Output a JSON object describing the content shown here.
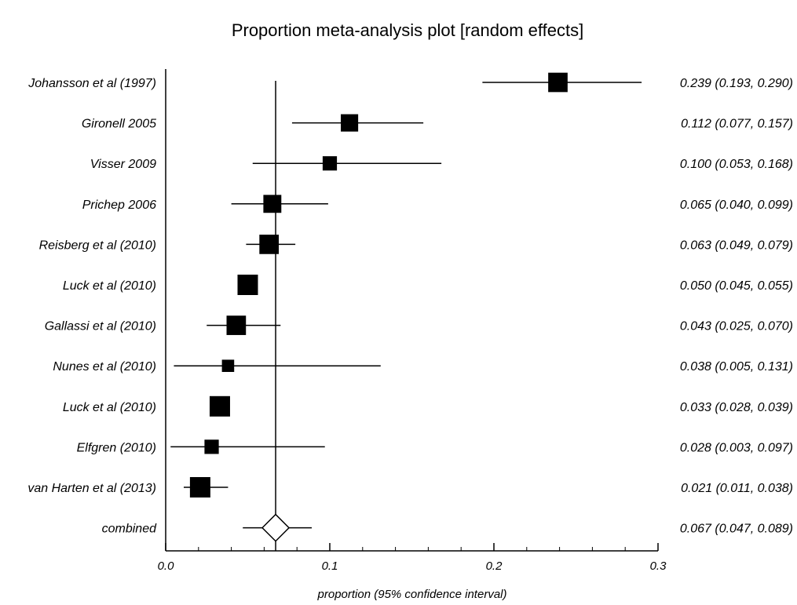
{
  "chart_data": {
    "type": "forest",
    "title": "Proportion meta-analysis plot [random effects]",
    "xlabel": "proportion (95% confidence interval)",
    "xlim": [
      0.0,
      0.3
    ],
    "xticks": [
      "0.0",
      "0.1",
      "0.2",
      "0.3"
    ],
    "xtick_values": [
      0.0,
      0.1,
      0.2,
      0.3
    ],
    "minor_step": 0.02,
    "pooled_line": 0.067,
    "studies": [
      {
        "name": "Johansson et al (1997)",
        "est": 0.239,
        "lo": 0.193,
        "hi": 0.29,
        "weight": 0.95,
        "label": "0.239 (0.193, 0.290)"
      },
      {
        "name": "Gironell 2005",
        "est": 0.112,
        "lo": 0.077,
        "hi": 0.157,
        "weight": 0.85,
        "label": "0.112 (0.077, 0.157)"
      },
      {
        "name": "Visser 2009",
        "est": 0.1,
        "lo": 0.053,
        "hi": 0.168,
        "weight": 0.7,
        "label": "0.100 (0.053, 0.168)"
      },
      {
        "name": "Prichep 2006",
        "est": 0.065,
        "lo": 0.04,
        "hi": 0.099,
        "weight": 0.88,
        "label": "0.065 (0.040, 0.099)"
      },
      {
        "name": "Reisberg et al (2010)",
        "est": 0.063,
        "lo": 0.049,
        "hi": 0.079,
        "weight": 0.95,
        "label": "0.063 (0.049, 0.079)"
      },
      {
        "name": "Luck et al (2010)",
        "est": 0.05,
        "lo": 0.045,
        "hi": 0.055,
        "weight": 1.0,
        "label": "0.050 (0.045, 0.055)"
      },
      {
        "name": "Gallassi et al (2010)",
        "est": 0.043,
        "lo": 0.025,
        "hi": 0.07,
        "weight": 0.95,
        "label": "0.043 (0.025, 0.070)"
      },
      {
        "name": "Nunes et al (2010)",
        "est": 0.038,
        "lo": 0.005,
        "hi": 0.131,
        "weight": 0.6,
        "label": "0.038 (0.005, 0.131)"
      },
      {
        "name": "Luck et al (2010)",
        "est": 0.033,
        "lo": 0.028,
        "hi": 0.039,
        "weight": 1.0,
        "label": "0.033 (0.028, 0.039)"
      },
      {
        "name": "Elfgren (2010)",
        "est": 0.028,
        "lo": 0.003,
        "hi": 0.097,
        "weight": 0.7,
        "label": "0.028 (0.003, 0.097)"
      },
      {
        "name": "van Harten et al (2013)",
        "est": 0.021,
        "lo": 0.011,
        "hi": 0.038,
        "weight": 1.0,
        "label": "0.021 (0.011, 0.038)"
      }
    ],
    "combined": {
      "name": "combined",
      "est": 0.067,
      "lo": 0.047,
      "hi": 0.089,
      "label": "0.067 (0.047, 0.089)"
    }
  }
}
